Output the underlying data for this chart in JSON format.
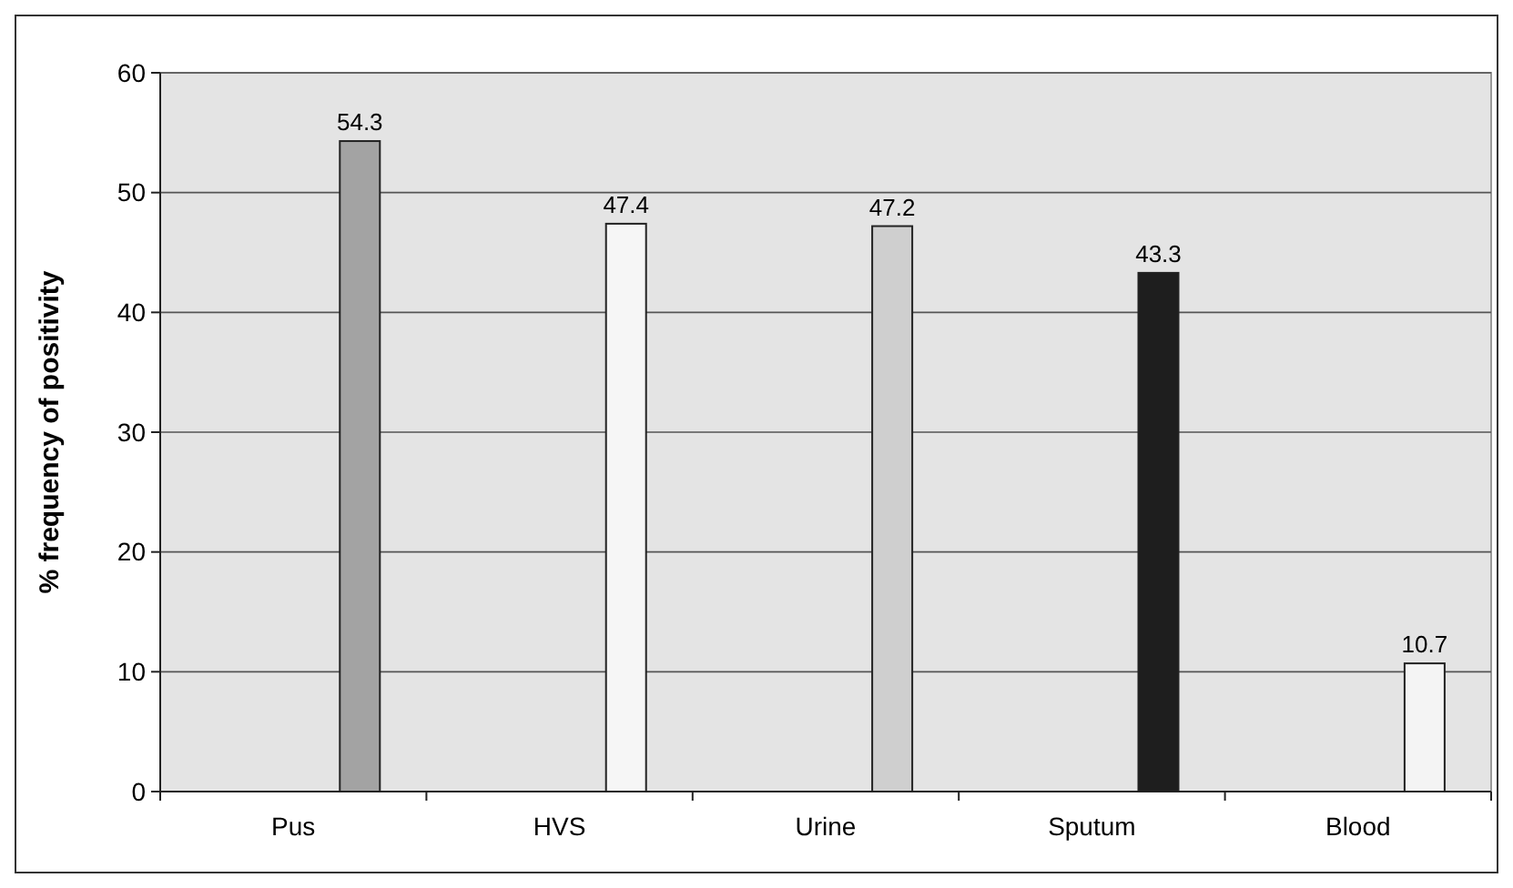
{
  "chart_data": {
    "type": "bar",
    "ylabel": "% frequency  of positivity",
    "categories": [
      "Pus",
      "HVS",
      "Urine",
      "Sputum",
      "Blood"
    ],
    "values": [
      54.3,
      47.4,
      47.2,
      43.3,
      10.7
    ],
    "colors": [
      "#a3a3a3",
      "#f6f6f6",
      "#cfcfcf",
      "#1e1e1e",
      "#f4f4f4"
    ],
    "ylim": [
      0,
      60
    ],
    "yticks": [
      0,
      10,
      20,
      30,
      40,
      50,
      60
    ],
    "grid": "y",
    "data_labels": true
  }
}
